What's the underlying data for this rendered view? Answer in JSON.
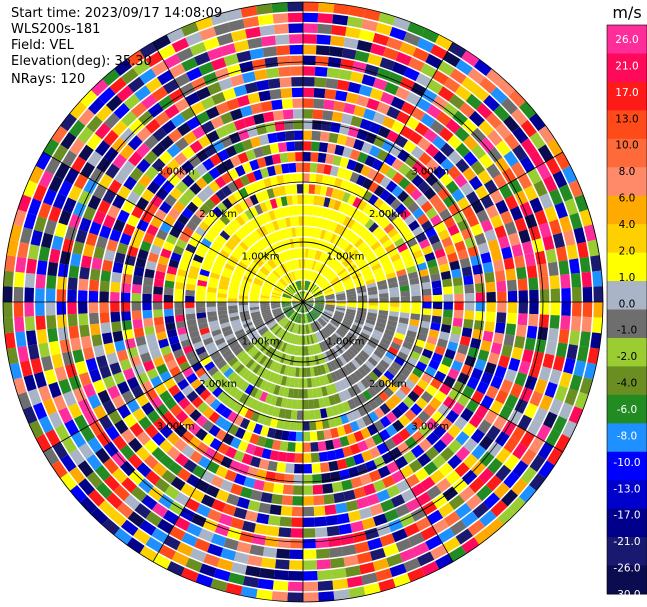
{
  "header": {
    "start_time": "Start time: 2023/09/17 14:08:09",
    "instrument": "WLS200s-181",
    "field": "Field: VEL",
    "elevation": "Elevation(deg): 35.30",
    "nrays": "NRays: 120"
  },
  "colorbar": {
    "unit": "m/s",
    "ticks": [
      "26.0",
      "21.0",
      "17.0",
      "13.0",
      "10.0",
      "8.0",
      "6.0",
      "4.0",
      "2.0",
      "1.0",
      "0.0",
      "-1.0",
      "-2.0",
      "-4.0",
      "-6.0",
      "-8.0",
      "-10.0",
      "-13.0",
      "-17.0",
      "-21.0",
      "-26.0",
      "-30.0"
    ],
    "colors": [
      "#ff2d9a",
      "#ff0a5a",
      "#ff1a1a",
      "#ff4a1a",
      "#ff6a3a",
      "#ff8a6a",
      "#ffaa00",
      "#ffd000",
      "#ffff00",
      "#a9b4c7",
      "#6e6e6e",
      "#9acd32",
      "#6b8e23",
      "#228b22",
      "#1e90ff",
      "#0000ff",
      "#0000cd",
      "#00008b",
      "#191970",
      "#0b0b50"
    ]
  },
  "rings": {
    "labels": [
      "1.00km",
      "2.00km",
      "3.00km"
    ]
  }
}
